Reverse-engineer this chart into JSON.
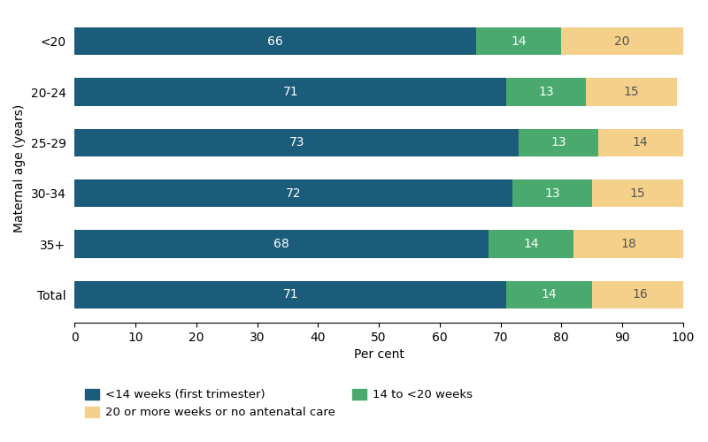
{
  "categories": [
    "Total",
    "35+",
    "30-34",
    "25-29",
    "20-24",
    "<20"
  ],
  "series": {
    "first_trimester": [
      71,
      68,
      72,
      73,
      71,
      66
    ],
    "mid": [
      14,
      14,
      13,
      13,
      13,
      14
    ],
    "late": [
      16,
      18,
      15,
      14,
      15,
      20
    ]
  },
  "ft_color": "#1b5c7a",
  "mid_color": "#4aaa6e",
  "late_color": "#f5d08a",
  "legend_labels": {
    "first_trimester": "<14 weeks (first trimester)",
    "mid": "14 to <20 weeks",
    "late": "20 or more weeks or no antenatal care"
  },
  "xlabel": "Per cent",
  "ylabel": "Maternal age (years)",
  "xlim": [
    0,
    100
  ],
  "xticks": [
    0,
    10,
    20,
    30,
    40,
    50,
    60,
    70,
    80,
    90,
    100
  ],
  "bar_height": 0.55,
  "figsize": [
    8.0,
    5.0
  ],
  "dpi": 100
}
